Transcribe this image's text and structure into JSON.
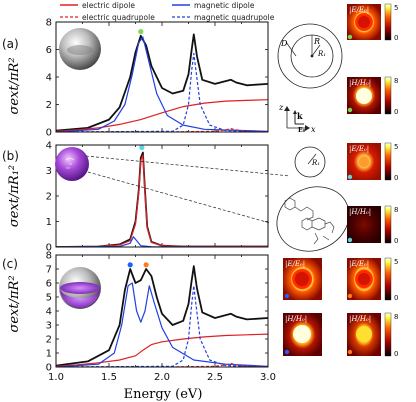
{
  "legend": {
    "electric_dipole": "electric dipole",
    "electric_quadrupole": "electric quadrupole",
    "magnetic_dipole": "magnetic dipole",
    "magnetic_quadrupole": "magnetic quadrupole"
  },
  "colors": {
    "total": "#111111",
    "electric": "#e02020",
    "magnetic": "#2040e0",
    "mode1_marker": "#2060ff",
    "mode2_marker": "#ff7a1a",
    "panel_a_marker": "#7ed957",
    "panel_b_marker": "#5cd6e6"
  },
  "panels": {
    "a": "(a)",
    "b": "(b)",
    "c": "(c)"
  },
  "ylabels": {
    "a": "σext/πR²",
    "b": "σext/πR₁²",
    "c": "σext/πR²"
  },
  "xlabel": "Energy (eV)",
  "geometry_labels": {
    "D": "D",
    "R": "R",
    "R1": "R₁",
    "z": "z",
    "k": "k",
    "E0": "E₀",
    "x": "x"
  },
  "map_labels": {
    "E": "|E/E₀|",
    "H": "|H/H₀|"
  },
  "colorbars": {
    "E_max": "5",
    "H_max": "8",
    "min": "0"
  },
  "chart_data": [
    {
      "type": "line",
      "panel": "(a)",
      "xlabel": "",
      "ylabel": "σext/πR²",
      "xlim": [
        1.0,
        3.0
      ],
      "ylim": [
        0,
        8
      ],
      "yticks": [
        "0",
        "2",
        "4",
        "6",
        "8"
      ],
      "series": [
        {
          "name": "total",
          "style": "solid",
          "color": "#111111",
          "x": [
            1.0,
            1.3,
            1.5,
            1.6,
            1.7,
            1.75,
            1.8,
            1.85,
            1.9,
            2.0,
            2.1,
            2.2,
            2.25,
            2.28,
            2.3,
            2.33,
            2.38,
            2.5,
            2.65,
            2.7,
            2.8,
            3.0
          ],
          "y": [
            0.1,
            0.3,
            0.9,
            1.8,
            4.0,
            5.8,
            7.0,
            6.3,
            4.8,
            3.2,
            2.8,
            3.0,
            4.2,
            6.0,
            7.1,
            5.5,
            3.8,
            3.5,
            3.8,
            3.6,
            3.4,
            3.5
          ]
        },
        {
          "name": "electric dipole",
          "style": "solid",
          "color": "#e02020",
          "x": [
            1.0,
            1.2,
            1.4,
            1.6,
            1.8,
            2.0,
            2.2,
            2.4,
            2.6,
            2.8,
            3.0
          ],
          "y": [
            0.05,
            0.15,
            0.3,
            0.55,
            0.9,
            1.4,
            1.85,
            2.1,
            2.25,
            2.3,
            2.35
          ]
        },
        {
          "name": "magnetic dipole",
          "style": "solid",
          "color": "#2040e0",
          "x": [
            1.0,
            1.4,
            1.55,
            1.65,
            1.72,
            1.78,
            1.82,
            1.88,
            1.95,
            2.05,
            2.2,
            2.4,
            3.0
          ],
          "y": [
            0.0,
            0.2,
            0.8,
            2.0,
            4.2,
            6.5,
            6.9,
            5.0,
            2.8,
            1.2,
            0.5,
            0.2,
            0.05
          ]
        },
        {
          "name": "electric quadrupole",
          "style": "dashed",
          "color": "#e02020",
          "x": [
            1.0,
            2.0,
            2.5,
            2.6,
            2.65,
            2.7,
            2.8,
            3.0
          ],
          "y": [
            0.0,
            0.0,
            0.05,
            0.15,
            0.25,
            0.15,
            0.05,
            0.0
          ]
        },
        {
          "name": "magnetic quadrupole",
          "style": "dashed",
          "color": "#2040e0",
          "x": [
            1.0,
            2.1,
            2.2,
            2.25,
            2.28,
            2.3,
            2.32,
            2.36,
            2.45,
            2.6,
            3.0
          ],
          "y": [
            0.0,
            0.05,
            0.5,
            2.0,
            4.5,
            5.7,
            4.5,
            2.0,
            0.5,
            0.1,
            0.0
          ]
        }
      ],
      "markers": [
        {
          "x": 1.8,
          "y": 7.3,
          "color": "#7ed957"
        }
      ]
    },
    {
      "type": "line",
      "panel": "(b)",
      "xlabel": "",
      "ylabel": "σext/πR₁²",
      "xlim": [
        1.0,
        3.0
      ],
      "ylim": [
        0,
        4
      ],
      "yticks": [
        "0",
        "1",
        "2",
        "3",
        "4"
      ],
      "series": [
        {
          "name": "total",
          "style": "solid",
          "color": "#111111",
          "x": [
            1.0,
            1.4,
            1.6,
            1.7,
            1.75,
            1.78,
            1.8,
            1.82,
            1.84,
            1.86,
            1.9,
            2.0,
            2.2,
            2.5,
            3.0
          ],
          "y": [
            0.0,
            0.02,
            0.1,
            0.3,
            1.0,
            2.2,
            3.5,
            3.7,
            2.2,
            0.8,
            0.2,
            0.05,
            0.02,
            0.02,
            0.02
          ]
        },
        {
          "name": "electric dipole",
          "style": "solid",
          "color": "#e02020",
          "x": [
            1.0,
            1.4,
            1.6,
            1.7,
            1.75,
            1.78,
            1.8,
            1.82,
            1.84,
            1.86,
            1.9,
            2.0,
            2.2,
            2.5,
            3.0
          ],
          "y": [
            0.0,
            0.02,
            0.08,
            0.25,
            0.9,
            2.1,
            3.4,
            3.6,
            2.1,
            0.75,
            0.18,
            0.05,
            0.02,
            0.02,
            0.02
          ]
        },
        {
          "name": "magnetic dipole",
          "style": "solid",
          "color": "#2040e0",
          "x": [
            1.0,
            1.6,
            1.7,
            1.73,
            1.76,
            1.8,
            1.9,
            3.0
          ],
          "y": [
            0.0,
            0.02,
            0.15,
            0.4,
            0.25,
            0.05,
            0.01,
            0.0
          ]
        }
      ],
      "markers": [
        {
          "x": 1.81,
          "y": 3.9,
          "color": "#5cd6e6"
        }
      ]
    },
    {
      "type": "line",
      "panel": "(c)",
      "xlabel": "Energy (eV)",
      "ylabel": "σext/πR²",
      "xlim": [
        1.0,
        3.0
      ],
      "ylim": [
        0,
        8
      ],
      "yticks": [
        "0",
        "1",
        "2",
        "3",
        "4",
        "5",
        "6",
        "7",
        "8"
      ],
      "xticks": [
        "1.0",
        "1.5",
        "2.0",
        "2.5",
        "3.0"
      ],
      "series": [
        {
          "name": "total",
          "style": "solid",
          "color": "#111111",
          "x": [
            1.0,
            1.3,
            1.5,
            1.6,
            1.65,
            1.7,
            1.75,
            1.8,
            1.85,
            1.9,
            1.95,
            2.0,
            2.1,
            2.2,
            2.25,
            2.28,
            2.3,
            2.33,
            2.38,
            2.5,
            2.65,
            2.7,
            2.8,
            3.0
          ],
          "y": [
            0.1,
            0.4,
            1.2,
            3.0,
            5.5,
            7.0,
            6.0,
            6.2,
            7.0,
            6.5,
            5.0,
            3.8,
            3.0,
            3.3,
            4.5,
            6.2,
            7.2,
            5.6,
            3.9,
            3.5,
            3.8,
            3.6,
            3.4,
            3.5
          ]
        },
        {
          "name": "electric dipole",
          "style": "solid",
          "color": "#e02020",
          "x": [
            1.0,
            1.2,
            1.4,
            1.6,
            1.75,
            1.82,
            1.9,
            2.0,
            2.2,
            2.4,
            2.6,
            2.8,
            3.0
          ],
          "y": [
            0.05,
            0.15,
            0.3,
            0.5,
            0.8,
            1.2,
            1.6,
            1.8,
            2.0,
            2.15,
            2.25,
            2.3,
            2.35
          ]
        },
        {
          "name": "magnetic dipole",
          "style": "solid",
          "color": "#2040e0",
          "x": [
            1.0,
            1.4,
            1.55,
            1.62,
            1.68,
            1.72,
            1.76,
            1.8,
            1.84,
            1.88,
            1.93,
            2.0,
            2.1,
            2.3,
            2.6,
            3.0
          ],
          "y": [
            0.0,
            0.2,
            1.0,
            3.0,
            5.8,
            6.0,
            4.0,
            3.2,
            4.0,
            5.8,
            4.5,
            2.8,
            1.4,
            0.5,
            0.2,
            0.05
          ]
        },
        {
          "name": "electric quadrupole",
          "style": "dashed",
          "color": "#e02020",
          "x": [
            1.0,
            2.0,
            2.5,
            2.6,
            2.65,
            2.7,
            2.8,
            3.0
          ],
          "y": [
            0.0,
            0.0,
            0.05,
            0.15,
            0.25,
            0.15,
            0.05,
            0.0
          ]
        },
        {
          "name": "magnetic quadrupole",
          "style": "dashed",
          "color": "#2040e0",
          "x": [
            1.0,
            2.1,
            2.2,
            2.25,
            2.28,
            2.3,
            2.32,
            2.36,
            2.45,
            2.6,
            3.0
          ],
          "y": [
            0.0,
            0.05,
            0.5,
            2.0,
            4.5,
            5.8,
            4.5,
            2.0,
            0.5,
            0.1,
            0.0
          ]
        }
      ],
      "markers": [
        {
          "x": 1.7,
          "y": 7.3,
          "color": "#2060ff"
        },
        {
          "x": 1.85,
          "y": 7.3,
          "color": "#ff7a1a"
        }
      ]
    }
  ]
}
